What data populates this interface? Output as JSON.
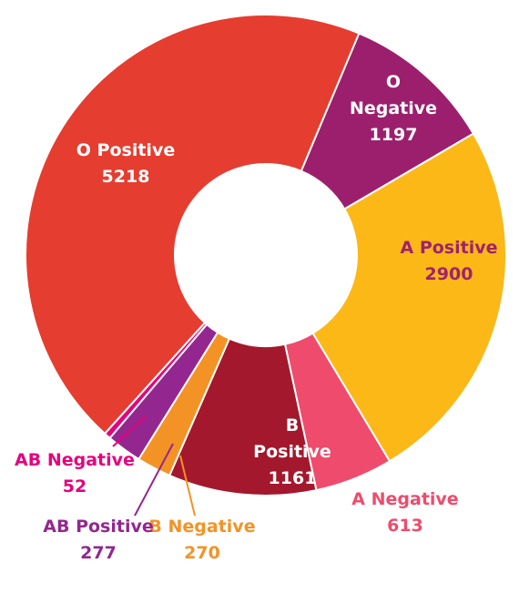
{
  "chart_data": {
    "type": "pie",
    "donut": true,
    "categories": [
      "O Negative",
      "A Positive",
      "A Negative",
      "B Positive",
      "B Negative",
      "AB Positive",
      "AB Negative",
      "O Positive"
    ],
    "values": [
      1197,
      2900,
      613,
      1161,
      270,
      277,
      52,
      5218
    ],
    "colors": [
      "#9c1f6e",
      "#fbb817",
      "#ef4b6c",
      "#a3182c",
      "#f39325",
      "#93278f",
      "#e6007e",
      "#e53d30"
    ]
  }
}
